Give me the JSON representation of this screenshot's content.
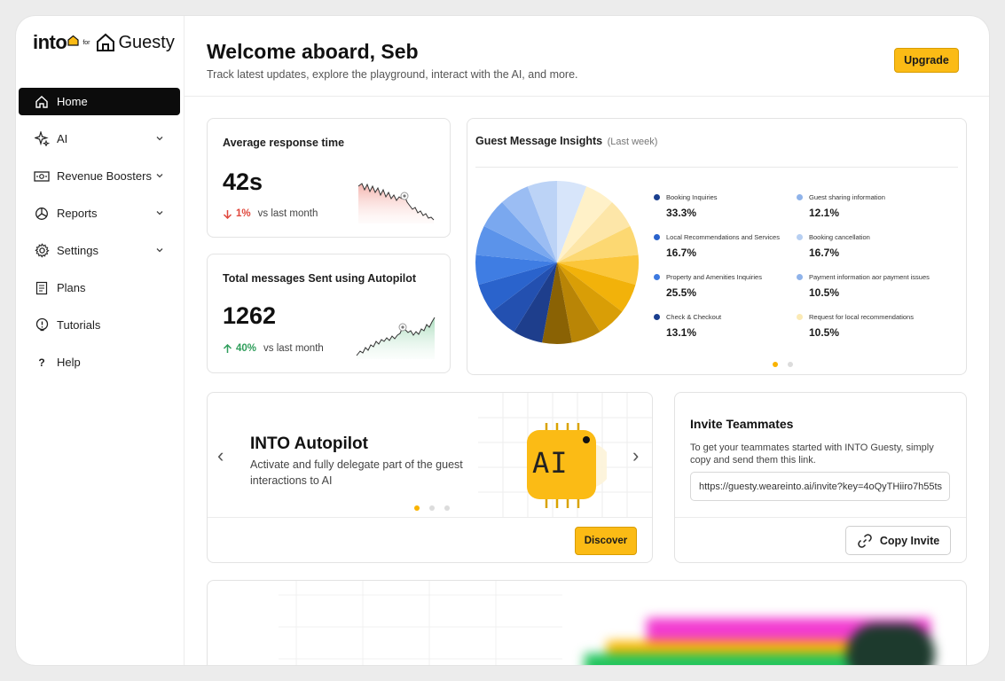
{
  "brand": {
    "logo_text": "into",
    "for": "for",
    "partner": "Guesty"
  },
  "sidebar": {
    "items": [
      {
        "label": "Home",
        "icon": "home-icon",
        "active": true
      },
      {
        "label": "AI",
        "icon": "sparkle-icon",
        "expandable": true
      },
      {
        "label": "Revenue Boosters",
        "icon": "cash-icon",
        "expandable": true
      },
      {
        "label": "Reports",
        "icon": "pie-chart-icon",
        "expandable": true
      },
      {
        "label": "Settings",
        "icon": "gear-icon",
        "expandable": true
      },
      {
        "label": "Plans",
        "icon": "clipboard-icon"
      },
      {
        "label": "Tutorials",
        "icon": "lightbulb-icon"
      },
      {
        "label": "Help",
        "icon": "question-icon"
      }
    ]
  },
  "header": {
    "title": "Welcome aboard, Seb",
    "subtitle": "Track latest updates, explore the playground, interact with the AI, and more.",
    "upgrade_label": "Upgrade"
  },
  "stats": {
    "response": {
      "title": "Average response time",
      "value": "42s",
      "delta": "1%",
      "delta_dir": "down",
      "compare": "vs last month",
      "color": "#e0473c"
    },
    "messages": {
      "title": "Total messages Sent using Autopilot",
      "value": "1262",
      "delta": "40%",
      "delta_dir": "up",
      "compare": "vs last month",
      "color": "#2f9e5b"
    }
  },
  "insights": {
    "title": "Guest Message Insights",
    "period": "(Last week)",
    "legend": [
      {
        "label": "Booking Inquiries",
        "value": "33.3%",
        "color": "#1a3f8f"
      },
      {
        "label": "Guest sharing information",
        "value": "12.1%",
        "color": "#8fb3ea"
      },
      {
        "label": "Local Recommendations and Services",
        "value": "16.7%",
        "color": "#2a63cc"
      },
      {
        "label": "Booking cancellation",
        "value": "16.7%",
        "color": "#b7cff2"
      },
      {
        "label": "Property and Amenities Inquiries",
        "value": "25.5%",
        "color": "#3d7ae0"
      },
      {
        "label": "Payment information aor payment issues",
        "value": "10.5%",
        "color": "#8fb3ea"
      },
      {
        "label": "Check & Checkout",
        "value": "13.1%",
        "color": "#1a3f8f"
      },
      {
        "label": "Request for local recommendations",
        "value": "10.5%",
        "color": "#fbeab5"
      }
    ]
  },
  "autopilot": {
    "title": "INTO Autopilot",
    "description": "Activate and fully delegate part of the guest interactions to AI",
    "chip_label": "AI",
    "discover_label": "Discover",
    "prev": "‹",
    "next": "›"
  },
  "invite": {
    "title": "Invite Teammates",
    "description": "To get your teammates started with INTO Guesty, simply copy and send them this link.",
    "link": "https://guesty.weareinto.ai/invite?key=4oQyTHiiro7h55ts",
    "copy_label": "Copy Invite"
  }
}
